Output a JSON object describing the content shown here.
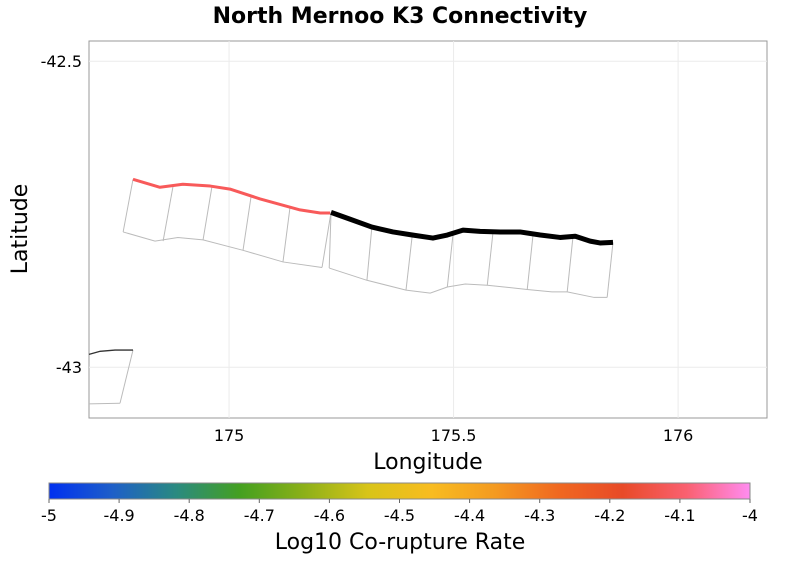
{
  "chart_data": {
    "type": "map",
    "title": "North Mernoo K3 Connectivity",
    "xlabel": "Longitude",
    "ylabel": "Latitude",
    "xlim": [
      174.688,
      176.198
    ],
    "ylim": [
      -43.083,
      -42.467
    ],
    "xticks": [
      {
        "v": 175,
        "label": "175"
      },
      {
        "v": 175.5,
        "label": "175.5"
      },
      {
        "v": 176,
        "label": "176"
      }
    ],
    "yticks": [
      {
        "v": -42.5,
        "label": "-42.5"
      },
      {
        "v": -43,
        "label": "-43"
      }
    ],
    "grid": true,
    "sections": [
      {
        "kind": "corupture",
        "value": -4.15,
        "trace_color": "#f85a5a",
        "trace": [
          [
            174.786,
            -42.693
          ],
          [
            174.846,
            -42.706
          ],
          [
            174.897,
            -42.701
          ],
          [
            174.958,
            -42.704
          ],
          [
            175.002,
            -42.709
          ],
          [
            175.069,
            -42.725
          ],
          [
            175.158,
            -42.743
          ],
          [
            175.203,
            -42.748
          ],
          [
            175.225,
            -42.748
          ]
        ],
        "bottom": [
          [
            174.764,
            -42.779
          ],
          [
            174.835,
            -42.794
          ],
          [
            174.886,
            -42.788
          ],
          [
            174.942,
            -42.792
          ],
          [
            175.031,
            -42.809
          ],
          [
            175.12,
            -42.828
          ],
          [
            175.207,
            -42.837
          ]
        ],
        "dividers": [
          [
            [
              174.786,
              -42.693
            ],
            [
              174.764,
              -42.779
            ]
          ],
          [
            [
              174.875,
              -42.705
            ],
            [
              174.853,
              -42.794
            ]
          ],
          [
            [
              174.962,
              -42.704
            ],
            [
              174.942,
              -42.792
            ]
          ],
          [
            [
              175.049,
              -42.721
            ],
            [
              175.031,
              -42.809
            ]
          ],
          [
            [
              175.136,
              -42.737
            ],
            [
              175.12,
              -42.828
            ]
          ],
          [
            [
              175.227,
              -42.747
            ],
            [
              175.207,
              -42.837
            ]
          ]
        ]
      },
      {
        "kind": "source",
        "trace_color": "#000000",
        "trace": [
          [
            175.227,
            -42.747
          ],
          [
            175.269,
            -42.758
          ],
          [
            175.318,
            -42.771
          ],
          [
            175.365,
            -42.779
          ],
          [
            175.408,
            -42.784
          ],
          [
            175.454,
            -42.789
          ],
          [
            175.486,
            -42.784
          ],
          [
            175.521,
            -42.776
          ],
          [
            175.559,
            -42.778
          ],
          [
            175.604,
            -42.779
          ],
          [
            175.648,
            -42.779
          ],
          [
            175.693,
            -42.784
          ],
          [
            175.737,
            -42.788
          ],
          [
            175.771,
            -42.786
          ],
          [
            175.804,
            -42.794
          ],
          [
            175.826,
            -42.797
          ],
          [
            175.855,
            -42.796
          ]
        ],
        "bottom": [
          [
            175.223,
            -42.838
          ],
          [
            175.307,
            -42.858
          ],
          [
            175.394,
            -42.874
          ],
          [
            175.448,
            -42.879
          ],
          [
            175.486,
            -42.869
          ],
          [
            175.526,
            -42.864
          ],
          [
            175.575,
            -42.866
          ],
          [
            175.664,
            -42.873
          ],
          [
            175.719,
            -42.877
          ],
          [
            175.753,
            -42.877
          ],
          [
            175.813,
            -42.886
          ],
          [
            175.842,
            -42.886
          ]
        ],
        "dividers": [
          [
            [
              175.227,
              -42.747
            ],
            [
              175.223,
              -42.838
            ]
          ],
          [
            [
              175.318,
              -42.771
            ],
            [
              175.307,
              -42.858
            ]
          ],
          [
            [
              175.408,
              -42.784
            ],
            [
              175.394,
              -42.874
            ]
          ],
          [
            [
              175.499,
              -42.781
            ],
            [
              175.486,
              -42.869
            ]
          ],
          [
            [
              175.588,
              -42.778
            ],
            [
              175.575,
              -42.866
            ]
          ],
          [
            [
              175.677,
              -42.783
            ],
            [
              175.664,
              -42.873
            ]
          ],
          [
            [
              175.766,
              -42.786
            ],
            [
              175.753,
              -42.877
            ]
          ],
          [
            [
              175.855,
              -42.796
            ],
            [
              175.842,
              -42.886
            ]
          ]
        ]
      },
      {
        "kind": "other",
        "trace_color": "#333333",
        "trace": [
          [
            174.688,
            -42.979
          ],
          [
            174.713,
            -42.974
          ],
          [
            174.746,
            -42.972
          ],
          [
            174.786,
            -42.972
          ]
        ],
        "bottom": [
          [
            174.688,
            -43.06
          ],
          [
            174.757,
            -43.059
          ]
        ],
        "dividers": [
          [
            [
              174.786,
              -42.972
            ],
            [
              174.757,
              -43.059
            ]
          ]
        ]
      }
    ],
    "colorbar": {
      "label": "Log10 Co-rupture Rate",
      "range": [
        -5,
        -4
      ],
      "ticks": [
        "-5",
        "-4.9",
        "-4.8",
        "-4.7",
        "-4.6",
        "-4.5",
        "-4.4",
        "-4.3",
        "-4.2",
        "-4.1",
        "-4"
      ],
      "colors": [
        "#0030f0",
        "#1e5fc8",
        "#2a8a80",
        "#44a020",
        "#8cb018",
        "#d8c418",
        "#f8bc20",
        "#f49a20",
        "#f06820",
        "#e84a28",
        "#fa6070",
        "#ff8cf0"
      ]
    }
  }
}
